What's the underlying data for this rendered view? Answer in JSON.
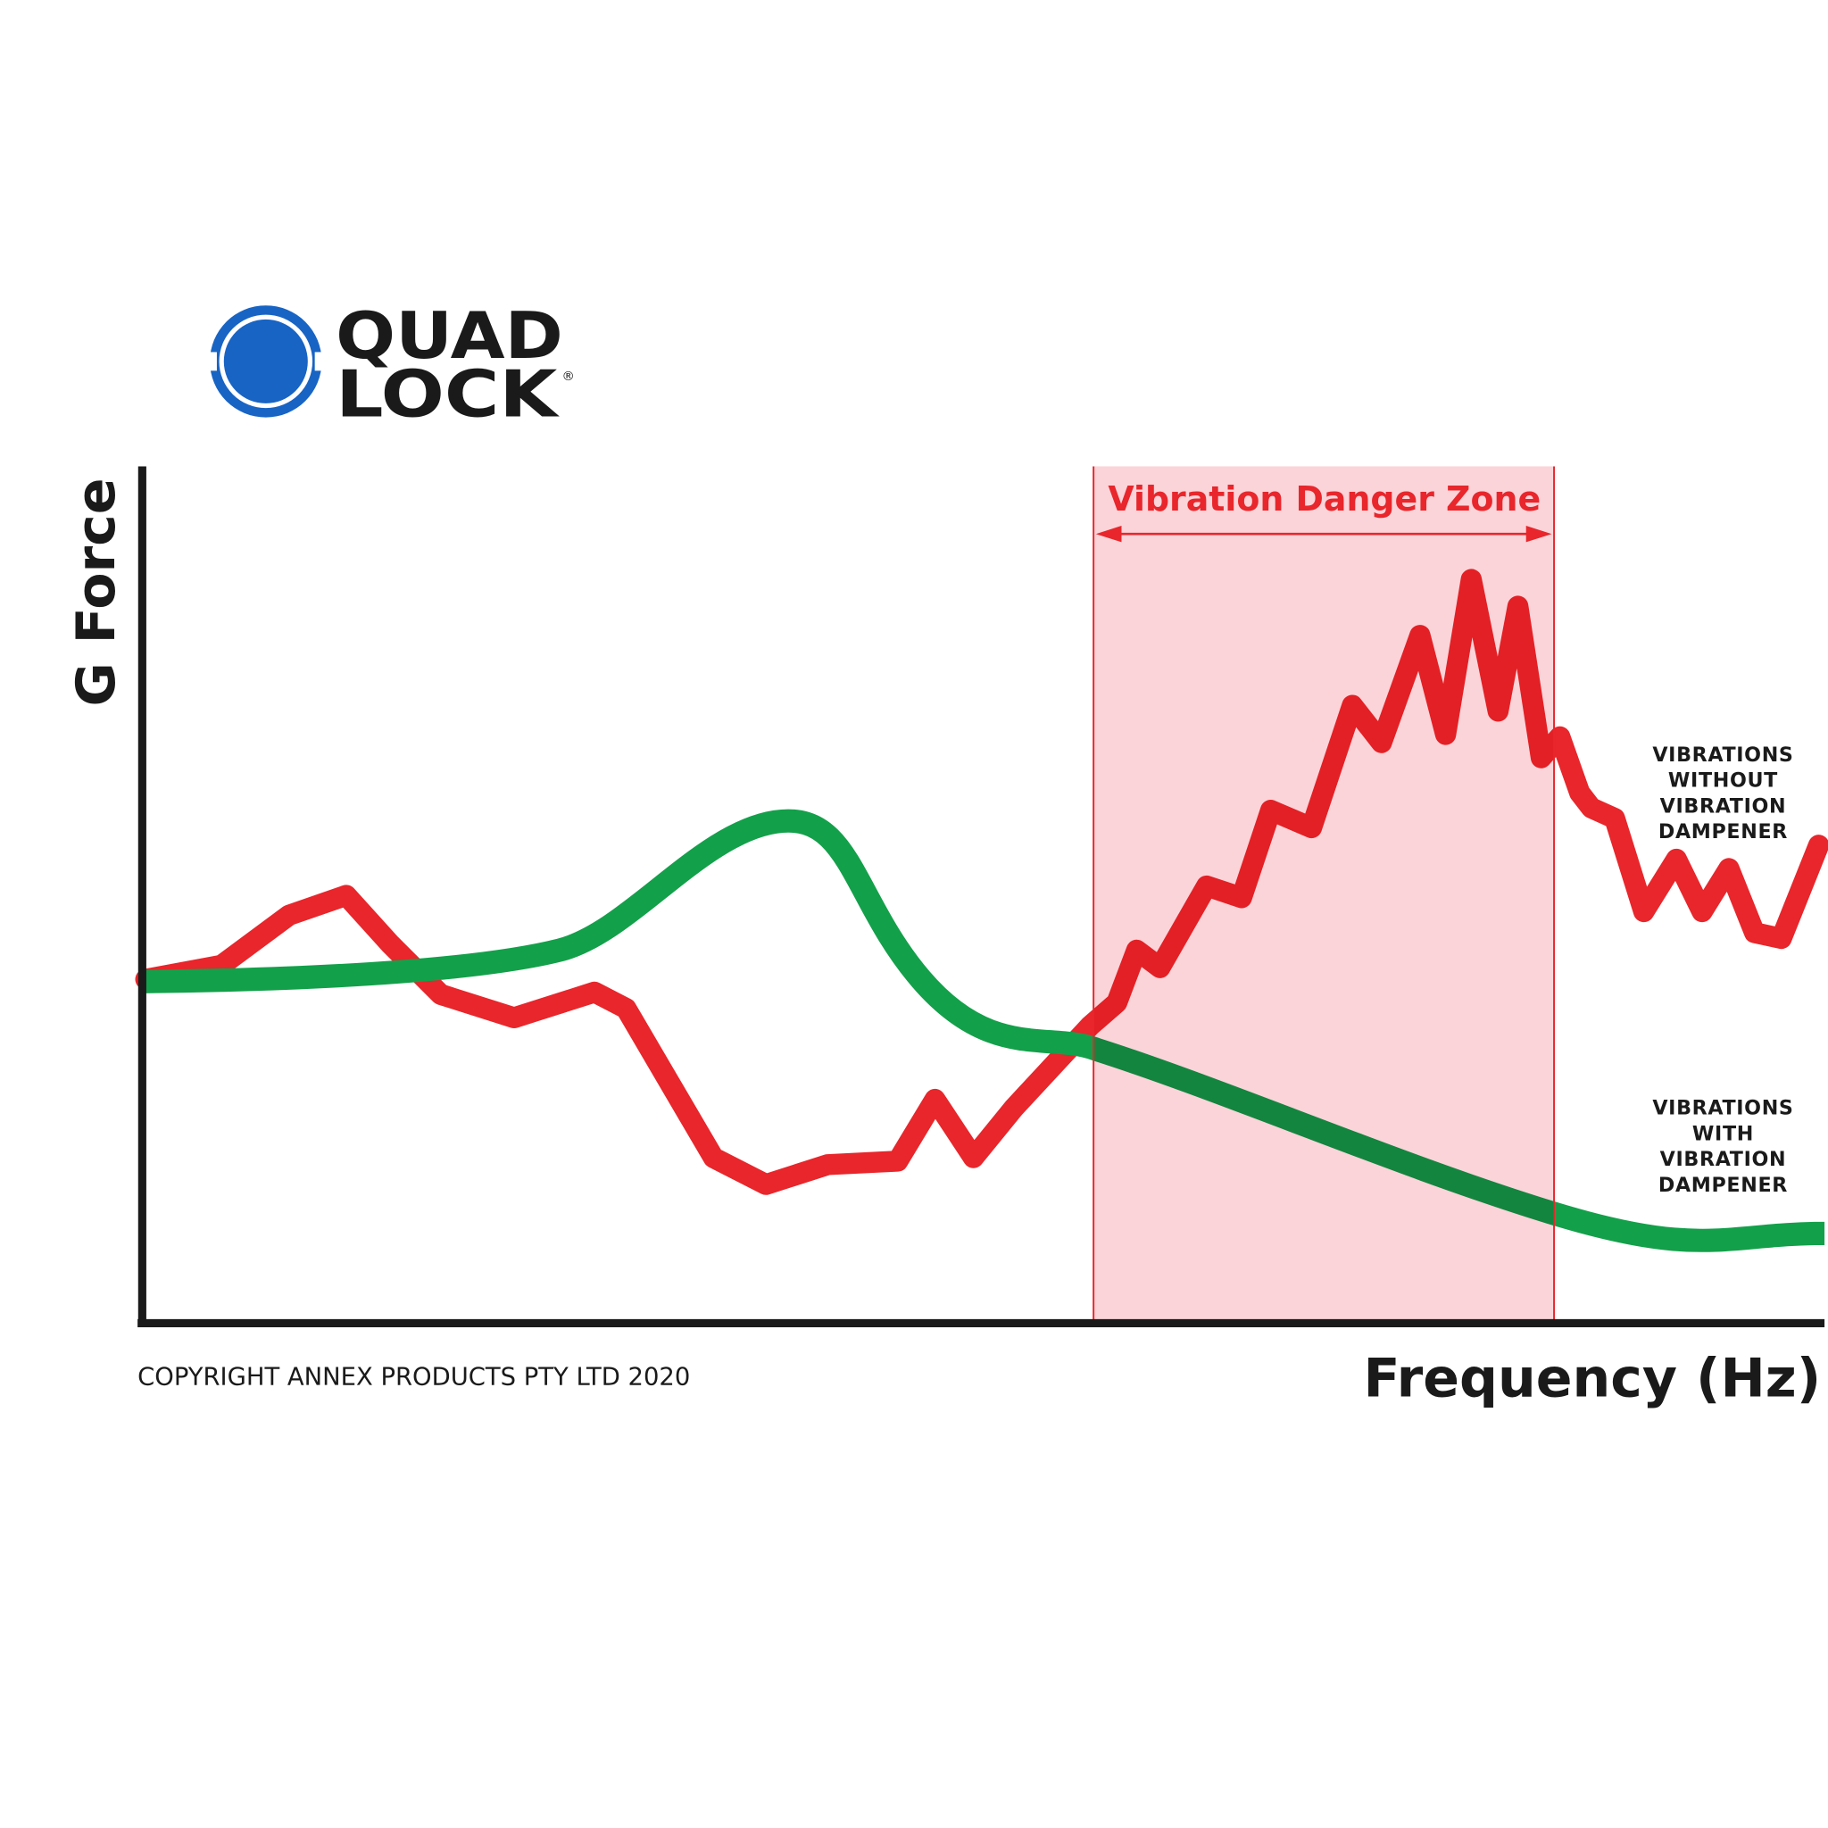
{
  "logo": {
    "line1": "QUAD",
    "line2": "LOCK",
    "mark": "®"
  },
  "y_axis_label": "G Force",
  "x_axis_label": "Frequency (Hz)",
  "zone_label": "Vibration Danger Zone",
  "series_labels": [
    [
      "VIBRATIONS",
      "WITHOUT",
      "VIBRATION",
      "DAMPENER"
    ],
    [
      "VIBRATIONS",
      "WITH",
      "VIBRATION",
      "DAMPENER"
    ]
  ],
  "copyright": "COPYRIGHT ANNEX PRODUCTS PTY LTD 2020"
}
